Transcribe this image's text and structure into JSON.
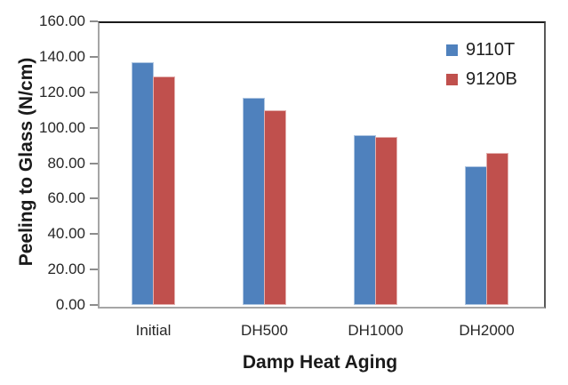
{
  "chart_data": {
    "type": "bar",
    "title": "",
    "categories": [
      "Initial",
      "DH500",
      "DH1000",
      "DH2000"
    ],
    "series": [
      {
        "name": "9110T",
        "color": "#4F81BD",
        "values": [
          137,
          117,
          96,
          78
        ]
      },
      {
        "name": "9120B",
        "color": "#C0504D",
        "values": [
          129,
          110,
          95,
          86
        ]
      }
    ],
    "xlabel": "Damp Heat Aging",
    "ylabel": "Peeling to Glass (N/cm)",
    "ylim": [
      0,
      160
    ],
    "ytick_step": 20,
    "ytick_labels": [
      "0.00",
      "20.00",
      "40.00",
      "60.00",
      "80.00",
      "100.00",
      "120.00",
      "140.00",
      "160.00"
    ],
    "grid": false,
    "legend_position": "top-right",
    "axis_colors": {
      "top_border": "#1a1a1a",
      "right_border": "#595959",
      "left_border": "#a6a6a6",
      "bottom_border": "#a6a6a6",
      "tick_mark": "#8c8c8c"
    }
  }
}
